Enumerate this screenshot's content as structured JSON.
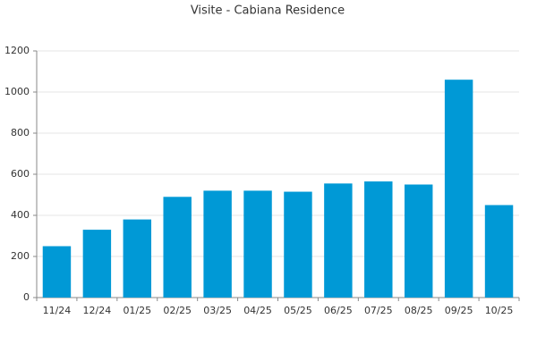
{
  "chart_data": {
    "type": "bar",
    "title": "Visite - Cabiana Residence",
    "categories": [
      "11/24",
      "12/24",
      "01/25",
      "02/25",
      "03/25",
      "04/25",
      "05/25",
      "06/25",
      "07/25",
      "08/25",
      "09/25",
      "10/25"
    ],
    "values": [
      250,
      330,
      380,
      490,
      520,
      520,
      515,
      555,
      565,
      550,
      1060,
      450
    ],
    "color": "#0099d6",
    "ylim": [
      0,
      1200
    ],
    "yticks": [
      0,
      200,
      400,
      600,
      800,
      1000,
      1200
    ],
    "grid": true
  }
}
